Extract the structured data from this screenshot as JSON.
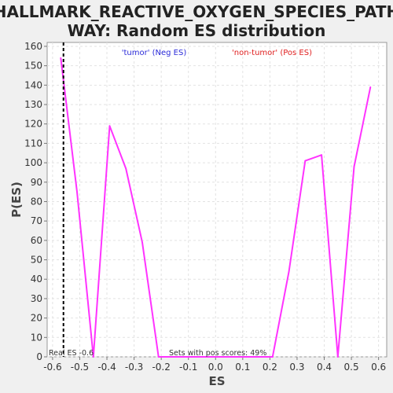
{
  "chart_data": {
    "type": "line",
    "title_lines": [
      "HALLMARK_REACTIVE_OXYGEN_SPECIES_PATH",
      "WAY: Random ES distribution"
    ],
    "xlabel": "ES",
    "ylabel": "P(ES)",
    "xlim": [
      -0.62,
      0.63
    ],
    "ylim": [
      0,
      162
    ],
    "xticks": [
      -0.6,
      -0.5,
      -0.4,
      -0.3,
      -0.2,
      -0.1,
      0.0,
      0.1,
      0.2,
      0.3,
      0.4,
      0.5,
      0.6
    ],
    "xtick_labels": [
      "-0.6",
      "-0.5",
      "-0.4",
      "-0.3",
      "-0.2",
      "-0.1",
      "0.0",
      "0.1",
      "0.2",
      "0.3",
      "0.4",
      "0.5",
      "0.6"
    ],
    "yticks": [
      0,
      10,
      20,
      30,
      40,
      50,
      60,
      70,
      80,
      90,
      100,
      110,
      120,
      130,
      140,
      150,
      160
    ],
    "ytick_labels": [
      "0",
      "10",
      "20",
      "30",
      "40",
      "50",
      "60",
      "70",
      "80",
      "90",
      "100",
      "110",
      "120",
      "130",
      "140",
      "150",
      "160"
    ],
    "grid": true,
    "series": [
      {
        "color": "#ff33ff",
        "x": [
          -0.57,
          -0.51,
          -0.45,
          -0.39,
          -0.33,
          -0.27,
          -0.21,
          -0.15,
          -0.09,
          -0.03,
          0.03,
          0.09,
          0.15,
          0.21,
          0.27,
          0.33,
          0.39,
          0.45,
          0.51,
          0.57
        ],
        "y": [
          154,
          85,
          0,
          119,
          97,
          59,
          0,
          0,
          0,
          0,
          0,
          0,
          0,
          0,
          44,
          101,
          104,
          0,
          98,
          139
        ]
      }
    ],
    "real_es": -0.56,
    "real_es_color": "#000000",
    "annotations": {
      "neg_label": "'tumor' (Neg ES)",
      "neg_color": "#2b2bd9",
      "pos_label": "'non-tumor' (Pos ES)",
      "pos_color": "#e02020",
      "real_es_label": "Real ES -0.6",
      "pos_scores_label": "Sets with pos scores: 49%"
    }
  }
}
